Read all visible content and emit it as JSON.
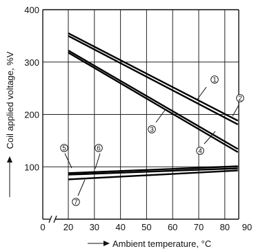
{
  "chart_data": {
    "type": "line",
    "xlabel": "Ambient temperature, °C",
    "ylabel": "Coil applied voltage, %V",
    "xlim": [
      0,
      90
    ],
    "ylim": [
      0,
      400
    ],
    "x_axis_break": true,
    "x_ticks": [
      0,
      20,
      30,
      40,
      50,
      60,
      70,
      80,
      90
    ],
    "y_ticks": [
      100,
      200,
      300,
      400
    ],
    "grid": true,
    "series": [
      {
        "name": "①",
        "points": [
          [
            20,
            355
          ],
          [
            85,
            188
          ]
        ]
      },
      {
        "name": "②",
        "points": [
          [
            20,
            350
          ],
          [
            85,
            181
          ]
        ]
      },
      {
        "name": "③",
        "points": [
          [
            20,
            322
          ],
          [
            85,
            134
          ]
        ]
      },
      {
        "name": "④",
        "points": [
          [
            20,
            318
          ],
          [
            85,
            128
          ]
        ]
      },
      {
        "name": "⑤",
        "points": [
          [
            20,
            88
          ],
          [
            85,
            101
          ]
        ]
      },
      {
        "name": "⑥",
        "points": [
          [
            20,
            85
          ],
          [
            85,
            97
          ]
        ]
      },
      {
        "name": "⑦",
        "points": [
          [
            20,
            76
          ],
          [
            85,
            93
          ]
        ]
      }
    ]
  }
}
